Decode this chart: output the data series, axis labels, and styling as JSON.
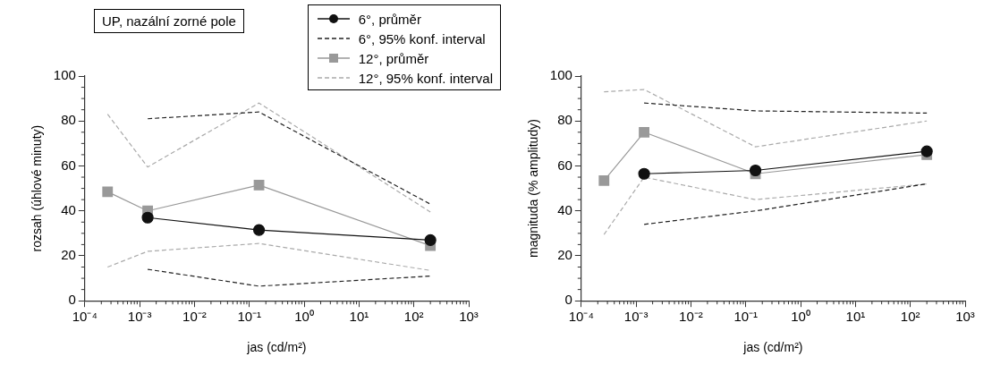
{
  "chart_data": [
    {
      "type": "line",
      "annotations": [
        "UP, nazální zorné pole"
      ],
      "xlabel": "jas (cd/m²)",
      "ylabel": "rozsah (úhlové minuty)",
      "log": "x",
      "grid": false,
      "legend": "top right",
      "xlim": [
        0.0001,
        1000
      ],
      "xticks": [
        {
          "value": 0.0001,
          "label": "10⁻⁴"
        },
        {
          "value": 0.001,
          "label": "10⁻³"
        },
        {
          "value": 0.01,
          "label": "10⁻²"
        },
        {
          "value": 0.1,
          "label": "10⁻¹"
        },
        {
          "value": 1,
          "label": "10⁰"
        },
        {
          "value": 10,
          "label": "10¹"
        },
        {
          "value": 100,
          "label": "10²"
        },
        {
          "value": 1000,
          "label": "10³"
        }
      ],
      "ylim": [
        0,
        100
      ],
      "yticks": [
        0,
        20,
        40,
        60,
        80,
        100
      ],
      "series": [
        {
          "name": "6°, průměr",
          "color": "#111111",
          "marker": "circle",
          "line_style": "solid",
          "x": [
            0.0014,
            0.15,
            200
          ],
          "values": [
            37,
            31.5,
            27
          ]
        },
        {
          "name": "6°, 95% konf. interval",
          "color": "#222222",
          "marker": "none",
          "line_style": "dashed",
          "x": [
            0.0014,
            0.15,
            200
          ],
          "values": [
            81,
            84,
            43
          ]
        },
        {
          "color": "#222222",
          "marker": "none",
          "line_style": "dashed",
          "x": [
            0.0014,
            0.15,
            200
          ],
          "values": [
            14,
            6.5,
            11
          ]
        },
        {
          "name": "12°, průměr",
          "color": "#999999",
          "marker": "square",
          "line_style": "solid",
          "x": [
            0.00026,
            0.0014,
            0.15,
            200
          ],
          "values": [
            48.5,
            40,
            51.5,
            24.5
          ]
        },
        {
          "name": "12°, 95% konf. interval",
          "color": "#aaaaaa",
          "marker": "none",
          "line_style": "dashed",
          "x": [
            0.00026,
            0.0014,
            0.15,
            200
          ],
          "values": [
            83,
            59.5,
            88,
            39.5
          ]
        },
        {
          "color": "#aaaaaa",
          "marker": "none",
          "line_style": "dashed",
          "x": [
            0.00026,
            0.0014,
            0.15,
            200
          ],
          "values": [
            15,
            22,
            25.5,
            13.5
          ]
        }
      ]
    },
    {
      "type": "line",
      "xlabel": "jas (cd/m²)",
      "ylabel": "magnituda (% amplitudy)",
      "log": "x",
      "grid": false,
      "xlim": [
        0.0001,
        1000
      ],
      "xticks": [
        {
          "value": 0.0001,
          "label": "10⁻⁴"
        },
        {
          "value": 0.001,
          "label": "10⁻³"
        },
        {
          "value": 0.01,
          "label": "10⁻²"
        },
        {
          "value": 0.1,
          "label": "10⁻¹"
        },
        {
          "value": 1,
          "label": "10⁰"
        },
        {
          "value": 10,
          "label": "10¹"
        },
        {
          "value": 100,
          "label": "10²"
        },
        {
          "value": 1000,
          "label": "10³"
        }
      ],
      "ylim": [
        0,
        100
      ],
      "yticks": [
        0,
        20,
        40,
        60,
        80,
        100
      ],
      "series": [
        {
          "color": "#111111",
          "marker": "circle",
          "line_style": "solid",
          "x": [
            0.0014,
            0.15,
            200
          ],
          "values": [
            56.5,
            58,
            66.5
          ]
        },
        {
          "color": "#222222",
          "marker": "none",
          "line_style": "dashed",
          "x": [
            0.0014,
            0.15,
            200
          ],
          "values": [
            88,
            84.5,
            83.5
          ]
        },
        {
          "color": "#222222",
          "marker": "none",
          "line_style": "dashed",
          "x": [
            0.0014,
            0.15,
            200
          ],
          "values": [
            34,
            40,
            52
          ]
        },
        {
          "color": "#999999",
          "marker": "square",
          "line_style": "solid",
          "x": [
            0.00026,
            0.0014,
            0.15,
            200
          ],
          "values": [
            53.5,
            75,
            56.5,
            65
          ]
        },
        {
          "color": "#aaaaaa",
          "marker": "none",
          "line_style": "dashed",
          "x": [
            0.00026,
            0.0014,
            0.15,
            200
          ],
          "values": [
            93,
            94,
            68.5,
            80
          ]
        },
        {
          "color": "#aaaaaa",
          "marker": "none",
          "line_style": "dashed",
          "x": [
            0.00026,
            0.0014,
            0.15,
            200
          ],
          "values": [
            29.5,
            55,
            45,
            52
          ]
        }
      ]
    }
  ]
}
